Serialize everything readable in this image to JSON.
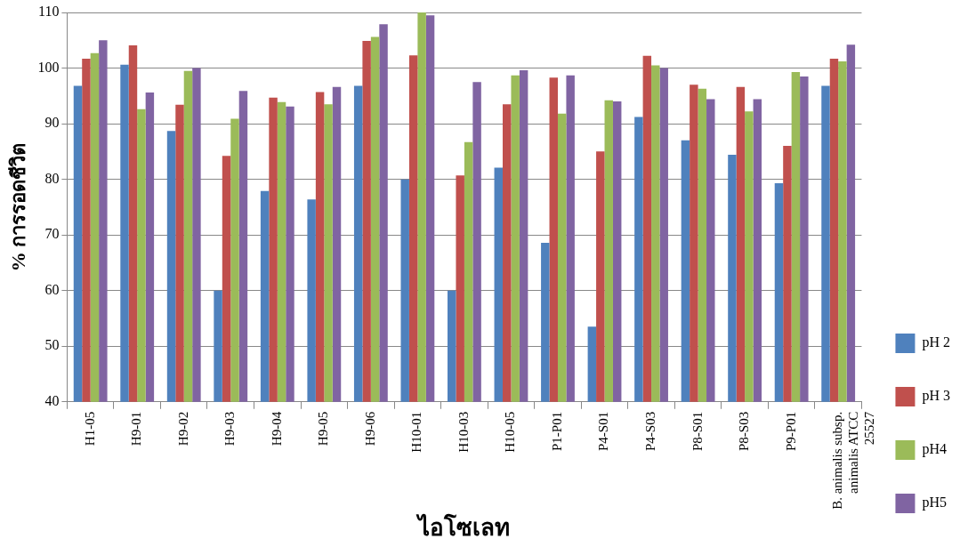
{
  "chart_data": {
    "type": "bar",
    "xlabel": "ไอโซเลท",
    "ylabel": "% การรอดชีวิต",
    "categories": [
      "H1-05",
      "H9-01",
      "H9-02",
      "H9-03",
      "H9-04",
      "H9-05",
      "H9-06",
      "H10-01",
      "H10-03",
      "H10-05",
      "P1-P01",
      "P4-S01",
      "P4-S03",
      "P8-S01",
      "P8-S03",
      "P9-P01",
      "B. animalis subsp. animalis ATCC 25527"
    ],
    "series": [
      {
        "name": "pH 2",
        "color": "#4f81bd",
        "values": [
          96.8,
          100.6,
          88.7,
          60.0,
          77.9,
          76.4,
          96.8,
          80.0,
          60.0,
          82.1,
          68.6,
          53.5,
          91.2,
          87.0,
          84.4,
          79.3,
          96.8
        ]
      },
      {
        "name": "pH 3",
        "color": "#c0504d",
        "values": [
          101.7,
          104.1,
          93.4,
          84.2,
          94.7,
          95.7,
          104.9,
          102.3,
          80.7,
          93.5,
          98.3,
          85.0,
          102.2,
          97.0,
          96.6,
          86.0,
          101.7
        ]
      },
      {
        "name": "pH4",
        "color": "#9bbb59",
        "values": [
          102.7,
          92.6,
          99.5,
          90.9,
          93.9,
          93.5,
          105.6,
          110.0,
          86.7,
          98.7,
          91.8,
          94.2,
          100.5,
          96.3,
          92.2,
          99.3,
          101.2
        ]
      },
      {
        "name": "pH5",
        "color": "#8064a2",
        "values": [
          105.0,
          95.6,
          100.0,
          95.9,
          93.1,
          96.6,
          107.9,
          109.5,
          97.5,
          99.6,
          98.7,
          94.0,
          100.0,
          94.4,
          94.4,
          98.5,
          104.2
        ]
      }
    ],
    "ylim": [
      40,
      110
    ],
    "yticks": [
      40,
      50,
      60,
      70,
      80,
      90,
      100,
      110
    ],
    "grid": "y",
    "legend": "right"
  }
}
